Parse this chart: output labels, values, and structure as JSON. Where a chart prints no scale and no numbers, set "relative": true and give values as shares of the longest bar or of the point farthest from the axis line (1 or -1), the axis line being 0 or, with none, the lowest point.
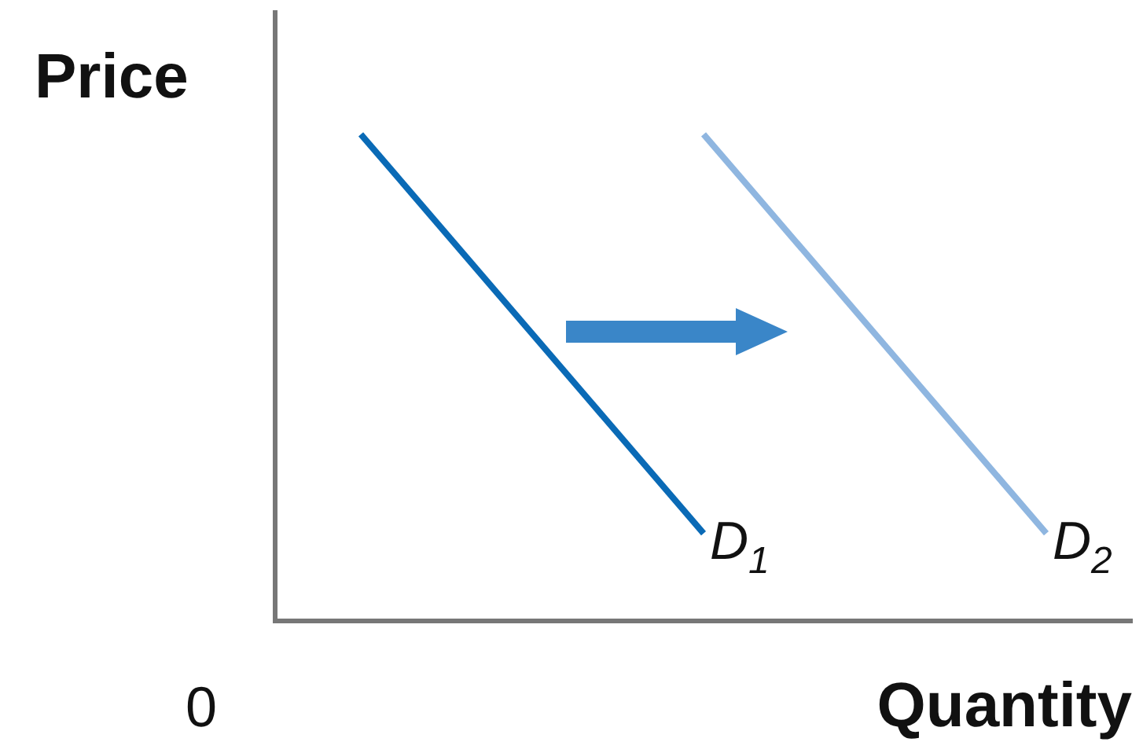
{
  "chart_data": {
    "type": "line",
    "relative": true,
    "xlabel": "Quantity",
    "ylabel": "Price",
    "annotations": [
      "0"
    ],
    "categories": [
      null,
      null,
      null,
      null,
      null
    ],
    "series": [
      {
        "name": "D$_{1}$",
        "color": "#0a6ab6",
        "values": [
          1,
          null,
          0.18,
          null,
          null
        ]
      },
      {
        "name": "D$_{2}$",
        "color": "#8fb6e0",
        "values": [
          null,
          null,
          1,
          null,
          0.18
        ]
      }
    ]
  }
}
